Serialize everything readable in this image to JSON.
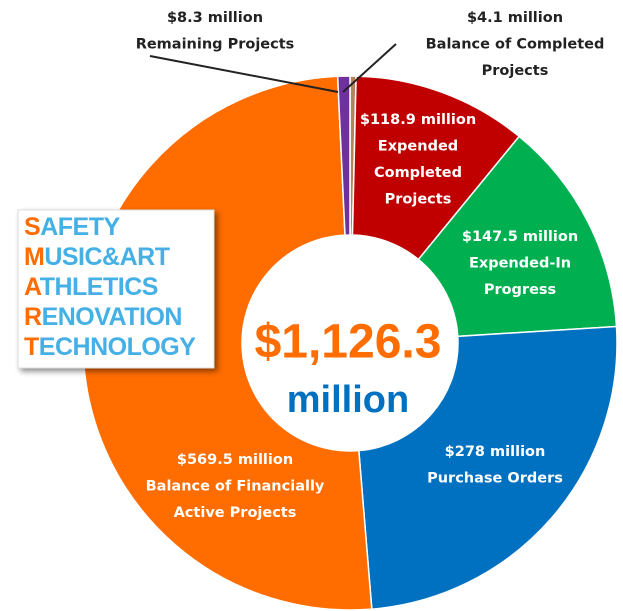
{
  "chart_data": {
    "type": "donut",
    "categories": [
      "Balance of Completed\nProjects",
      "Expended\nCompleted\nProjects",
      "Expended-In\nProgress",
      "Purchase Orders",
      "Balance of Financially\nActive Projects",
      "Remaining Projects"
    ],
    "values": [
      4.1,
      118.9,
      147.5,
      278,
      569.5,
      8.3
    ],
    "value_labels": [
      "$4.1 million",
      "$118.9 million",
      "$147.5 million",
      "$278 million",
      "$569.5 million",
      "$8.3 million"
    ],
    "colors": [
      "#b5835a",
      "#c00000",
      "#00b050",
      "#0070c0",
      "#ff6c00",
      "#7030a0"
    ],
    "center_text": [
      "$1,126.3",
      "million"
    ],
    "logo": [
      "SAFETY",
      "MUSIC&ART",
      "ATHLETICS",
      "RENOVATION",
      "TECHNOLOGY"
    ]
  }
}
